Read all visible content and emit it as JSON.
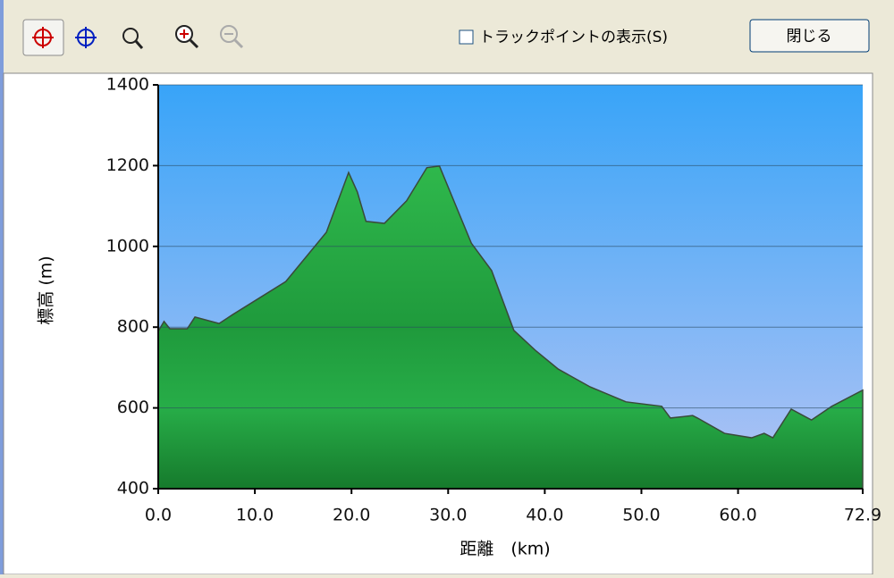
{
  "toolbar": {
    "checkbox_label": "トラックポイントの表示(S)",
    "button_label": "閉じる"
  },
  "chart_data": {
    "type": "area",
    "x_label": "距離　(km)",
    "y_label": "標高 (m)",
    "x": [
      0,
      0.6,
      1.2,
      3,
      3.8,
      6.3,
      7.7,
      13.2,
      17.4,
      19.7,
      20.6,
      21.5,
      23.4,
      25.7,
      27.8,
      29.1,
      32.4,
      34.5,
      36.8,
      39.1,
      41.4,
      44.7,
      48.4,
      52.1,
      53.0,
      55.3,
      55.8,
      58.6,
      61.4,
      62.7,
      63.6,
      65.5,
      67.6,
      69.7,
      72.9
    ],
    "values": [
      790,
      814,
      796,
      796,
      825,
      809,
      831,
      913,
      1035,
      1183,
      1135,
      1062,
      1057,
      1113,
      1195,
      1199,
      1008,
      940,
      792,
      741,
      696,
      652,
      615,
      604,
      575,
      581,
      575,
      537,
      526,
      537,
      526,
      597,
      570,
      604,
      644
    ],
    "color": "#22a040",
    "xlim": [
      0,
      72.9
    ],
    "xticks": [
      {
        "value": 0,
        "label": "0.0"
      },
      {
        "value": 10,
        "label": "10.0"
      },
      {
        "value": 20,
        "label": "20.0"
      },
      {
        "value": 30,
        "label": "30.0"
      },
      {
        "value": 40,
        "label": "40.0"
      },
      {
        "value": 50,
        "label": "50.0"
      },
      {
        "value": 60,
        "label": "60.0"
      },
      {
        "value": 72.9,
        "label": "72.9"
      }
    ],
    "ylim": [
      400,
      1400
    ],
    "yticks": [
      400,
      600,
      800,
      1000,
      1200,
      1400
    ],
    "grid": true
  }
}
